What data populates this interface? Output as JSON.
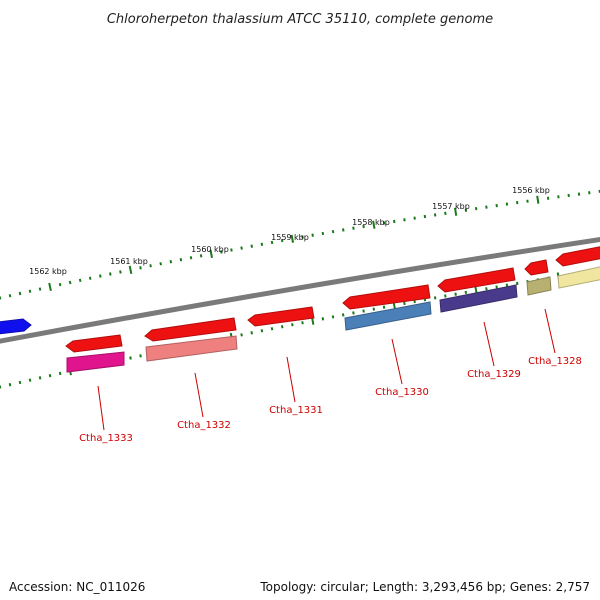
{
  "title": "Chloroherpeton thalassium ATCC 35110, complete genome",
  "footer": {
    "accession": "Accession: NC_011026",
    "summary": "Topology: circular; Length: 3,293,456 bp; Genes: 2,757"
  },
  "scale_labels": [
    "1562 kbp",
    "1561 kbp",
    "1560 kbp",
    "1559 kbp",
    "1558 kbp",
    "1557 kbp",
    "1556 kbp"
  ],
  "gene_labels": [
    "Ctha_1333",
    "Ctha_1332",
    "Ctha_1331",
    "Ctha_1330",
    "Ctha_1329",
    "Ctha_1328"
  ],
  "colors": {
    "backbone": "#7a7a7a",
    "scale_ticks": "#1a7a1a",
    "label_text": "#cc0000",
    "label_line": "#cc0000",
    "gene_red": "#ee1111",
    "partial_gene": "#1010ee",
    "magenta": "#e0148c",
    "salmon": "#ee8080",
    "steel_blue": "#4a7fb8",
    "indigo": "#4a3a8c",
    "khaki": "#b8b070",
    "pale_yellow": "#f0e6a0"
  }
}
